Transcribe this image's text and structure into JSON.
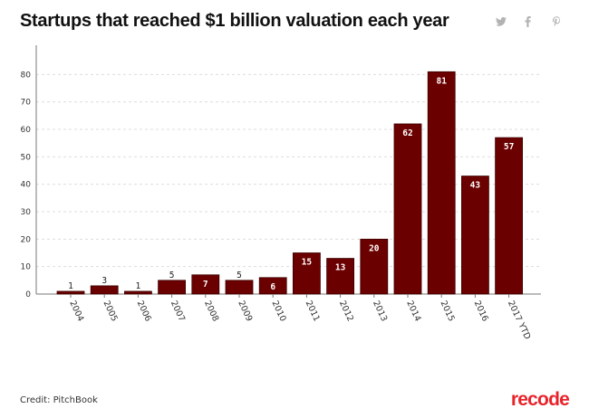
{
  "header": {
    "title": "Startups that reached $1 billion valuation each year",
    "share": [
      {
        "icon": "twitter-icon",
        "color": "#b3b3b3"
      },
      {
        "icon": "facebook-icon",
        "color": "#b3b3b3"
      },
      {
        "icon": "pinterest-icon",
        "color": "#b3b3b3"
      }
    ]
  },
  "chart_data": {
    "type": "bar",
    "categories": [
      "2004",
      "2005",
      "2006",
      "2007",
      "2008",
      "2009",
      "2010",
      "2011",
      "2012",
      "2013",
      "2014",
      "2015",
      "2016",
      "2017 YTD"
    ],
    "values": [
      1,
      3,
      1,
      5,
      7,
      5,
      6,
      15,
      13,
      20,
      62,
      81,
      43,
      57
    ],
    "data_labels": [
      "1",
      "3",
      "1",
      "5",
      "7",
      "5",
      "6",
      "15",
      "13",
      "20",
      "62",
      "81",
      "43",
      "57"
    ],
    "yticks": [
      0,
      10,
      20,
      30,
      40,
      50,
      60,
      70,
      80
    ],
    "ylim": [
      0,
      90
    ],
    "title": "Startups that reached $1 billion valuation each year",
    "xlabel": "",
    "ylabel": "",
    "grid": true,
    "legend": "none",
    "bar_color": "#6b0000",
    "bar_stroke": "#3d0000",
    "grid_color": "#dddddd"
  },
  "footer": {
    "credit": "Credit: PitchBook",
    "brand": "recode",
    "brand_color": "#e8232a"
  }
}
